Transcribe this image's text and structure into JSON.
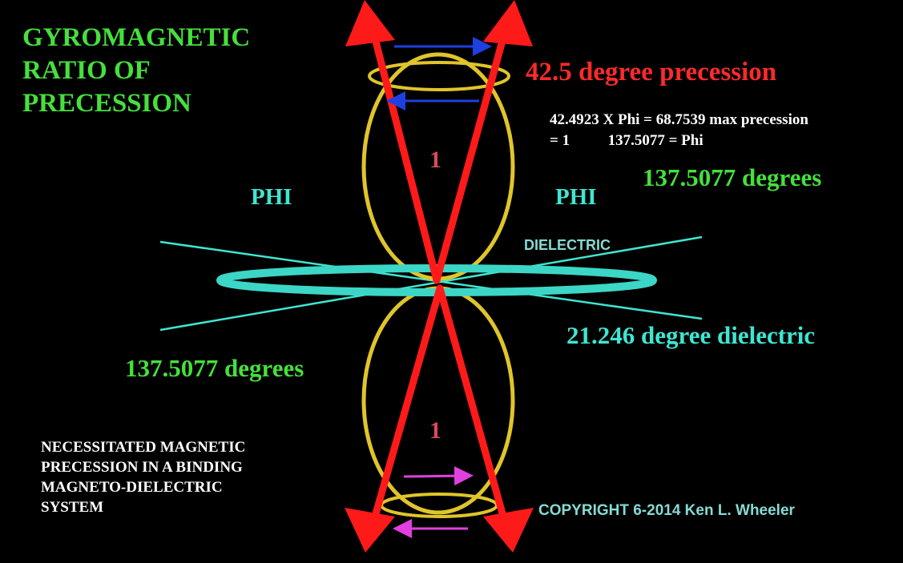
{
  "title_lines": [
    "GYROMAGNETIC",
    "RATIO OF",
    "PRECESSION"
  ],
  "precession_label": "42.5 degree precession",
  "formula_line1": "42.4923 X Phi = 68.7539 max precession",
  "formula_line2": "= 1          137.5077 = Phi",
  "phi_left": "PHI",
  "phi_right": "PHI",
  "angle_right": "137.5077 degrees",
  "angle_left": "137.5077 degrees",
  "unit_top": "1",
  "unit_bottom": "1",
  "dielectric_label": "DIELECTRIC",
  "dielectric_angle": "21.246 degree dielectric",
  "note_lines": [
    "NECESSITATED MAGNETIC",
    "PRECESSION IN A BINDING",
    "MAGNETO-DIELECTRIC",
    "SYSTEM"
  ],
  "copyright": "COPYRIGHT 6-2014 Ken L. Wheeler",
  "colors": {
    "background": "#000000",
    "title_green": "#45e03c",
    "precession_red": "#ff1a1a",
    "cyan": "#3ee6d2",
    "dielectric_ring": "#3cd6c6",
    "field_yellow": "#e0c52a",
    "arrow_blue": "#1f3fe0",
    "arrow_magenta": "#e040e0"
  }
}
